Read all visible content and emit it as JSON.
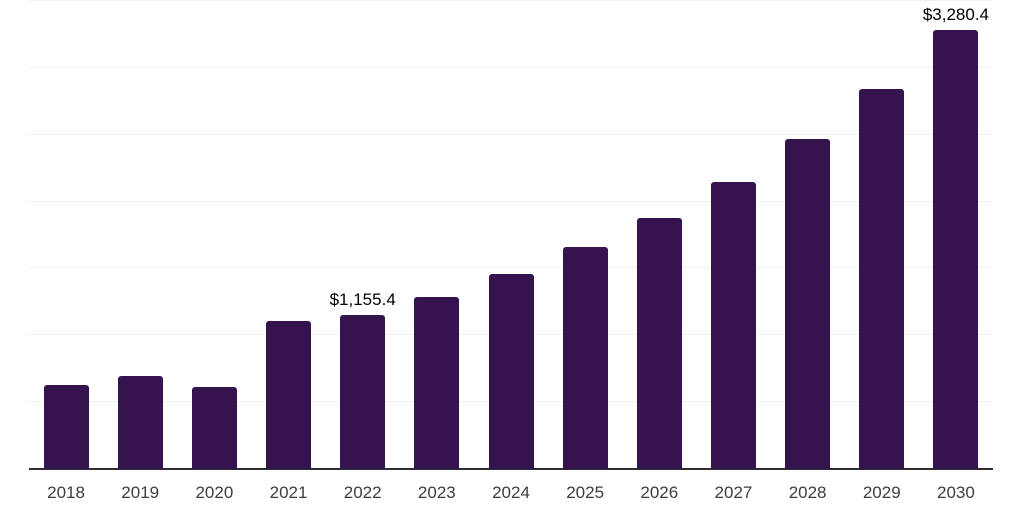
{
  "chart_data": {
    "type": "bar",
    "title": "",
    "xlabel": "",
    "ylabel": "",
    "categories": [
      "2018",
      "2019",
      "2020",
      "2021",
      "2022",
      "2023",
      "2024",
      "2025",
      "2026",
      "2027",
      "2028",
      "2029",
      "2030"
    ],
    "values": [
      630,
      695,
      615,
      1105,
      1155.4,
      1290,
      1460,
      1660,
      1880,
      2150,
      2465,
      2840,
      3280.4
    ],
    "data_labels": {
      "2022": "$1,155.4",
      "2030": "$3,280.4"
    },
    "ylim": [
      0,
      3500
    ],
    "gridline_step": 500,
    "grid": true,
    "legend": false,
    "y_axis_tick_labels_visible": false,
    "bar_color": "#34134E",
    "grid_color": "#F0F0F0",
    "axis_color": "#2E2E2E",
    "tick_label_color": "#3D3D3D",
    "data_label_color": "#000000",
    "background_color": "#FFFFFF"
  }
}
